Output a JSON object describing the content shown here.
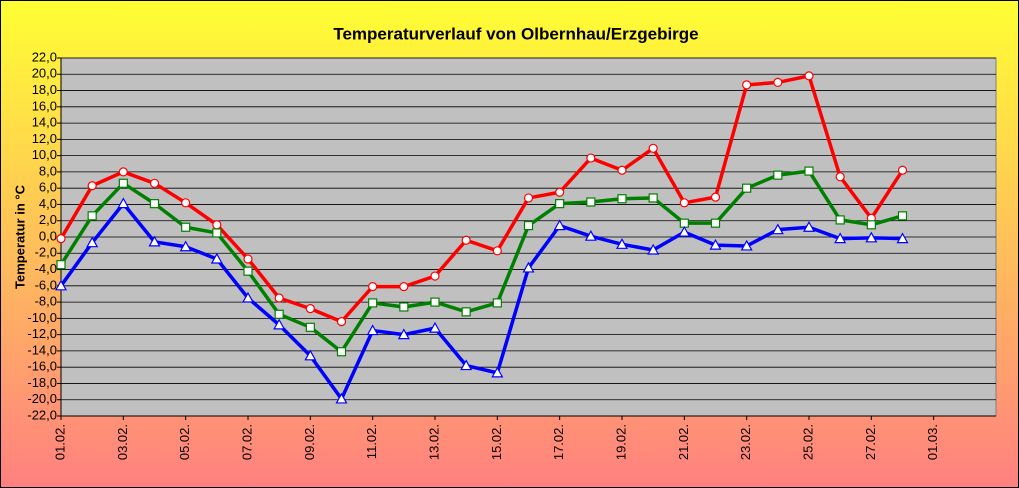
{
  "chart_data": {
    "type": "line",
    "title": "Temperaturverlauf von Olbernhau/Erzgebirge",
    "y_label": "Temperatur in °C",
    "categories": [
      "01.02.",
      null,
      "03.02.",
      null,
      "05.02.",
      null,
      "07.02.",
      null,
      "09.02.",
      null,
      "11.02.",
      null,
      "13.02.",
      null,
      "15.02.",
      null,
      "17.02.",
      null,
      "19.02.",
      null,
      "21.02.",
      null,
      "23.02.",
      null,
      "25.02.",
      null,
      "27.02.",
      null,
      "01.03.",
      null,
      null
    ],
    "series": [
      {
        "color": "#ff0000",
        "marker": "circle",
        "values": [
          -0.2,
          6.3,
          8.0,
          6.6,
          4.2,
          1.5,
          -2.7,
          -7.5,
          -8.8,
          -10.4,
          -6.1,
          -6.1,
          -4.8,
          -0.4,
          -1.7,
          4.8,
          5.5,
          9.7,
          8.2,
          10.9,
          4.2,
          4.9,
          18.7,
          19.0,
          19.8,
          7.4,
          2.3,
          8.2,
          null,
          null,
          null
        ]
      },
      {
        "color": "#008000",
        "marker": "square",
        "values": [
          -3.4,
          2.6,
          6.6,
          4.1,
          1.2,
          0.5,
          -4.2,
          -9.5,
          -11.1,
          -14.1,
          -8.1,
          -8.6,
          -8.0,
          -9.2,
          -8.1,
          1.4,
          4.1,
          4.3,
          4.7,
          4.8,
          1.7,
          1.7,
          6.0,
          7.6,
          8.1,
          2.1,
          1.5,
          2.6,
          null,
          null,
          null
        ]
      },
      {
        "color": "#0000ff",
        "marker": "triangle",
        "values": [
          -6.0,
          -0.7,
          4.1,
          -0.6,
          -1.2,
          -2.7,
          -7.5,
          -10.8,
          -14.6,
          -19.9,
          -11.5,
          -12.0,
          -11.2,
          -15.8,
          -16.7,
          -3.8,
          1.4,
          0.1,
          -0.9,
          -1.6,
          0.6,
          -1.0,
          -1.1,
          0.9,
          1.2,
          -0.2,
          -0.1,
          -0.2,
          null,
          null,
          null
        ]
      }
    ],
    "ylim": [
      -22,
      22
    ],
    "yticks": [
      {
        "value": -22,
        "label": "-22,0"
      },
      {
        "value": -20,
        "label": "-20,0"
      },
      {
        "value": -18,
        "label": "-18,0"
      },
      {
        "value": -16,
        "label": "-16,0"
      },
      {
        "value": -14,
        "label": "-14,0"
      },
      {
        "value": -12,
        "label": "-12,0"
      },
      {
        "value": -10,
        "label": "-10,0"
      },
      {
        "value": -8,
        "label": "-8,0"
      },
      {
        "value": -6,
        "label": "-6,0"
      },
      {
        "value": -4,
        "label": "-4,0"
      },
      {
        "value": -2,
        "label": "-2,0"
      },
      {
        "value": 0,
        "label": "0,0"
      },
      {
        "value": 2,
        "label": "2,0"
      },
      {
        "value": 4,
        "label": "4,0"
      },
      {
        "value": 6,
        "label": "6,0"
      },
      {
        "value": 8,
        "label": "8,0"
      },
      {
        "value": 10,
        "label": "10,0"
      },
      {
        "value": 12,
        "label": "12,0"
      },
      {
        "value": 14,
        "label": "14,0"
      },
      {
        "value": 16,
        "label": "16,0"
      },
      {
        "value": 18,
        "label": "18,0"
      },
      {
        "value": 20,
        "label": "20,0"
      },
      {
        "value": 22,
        "label": "22,0"
      }
    ],
    "grid": true
  }
}
